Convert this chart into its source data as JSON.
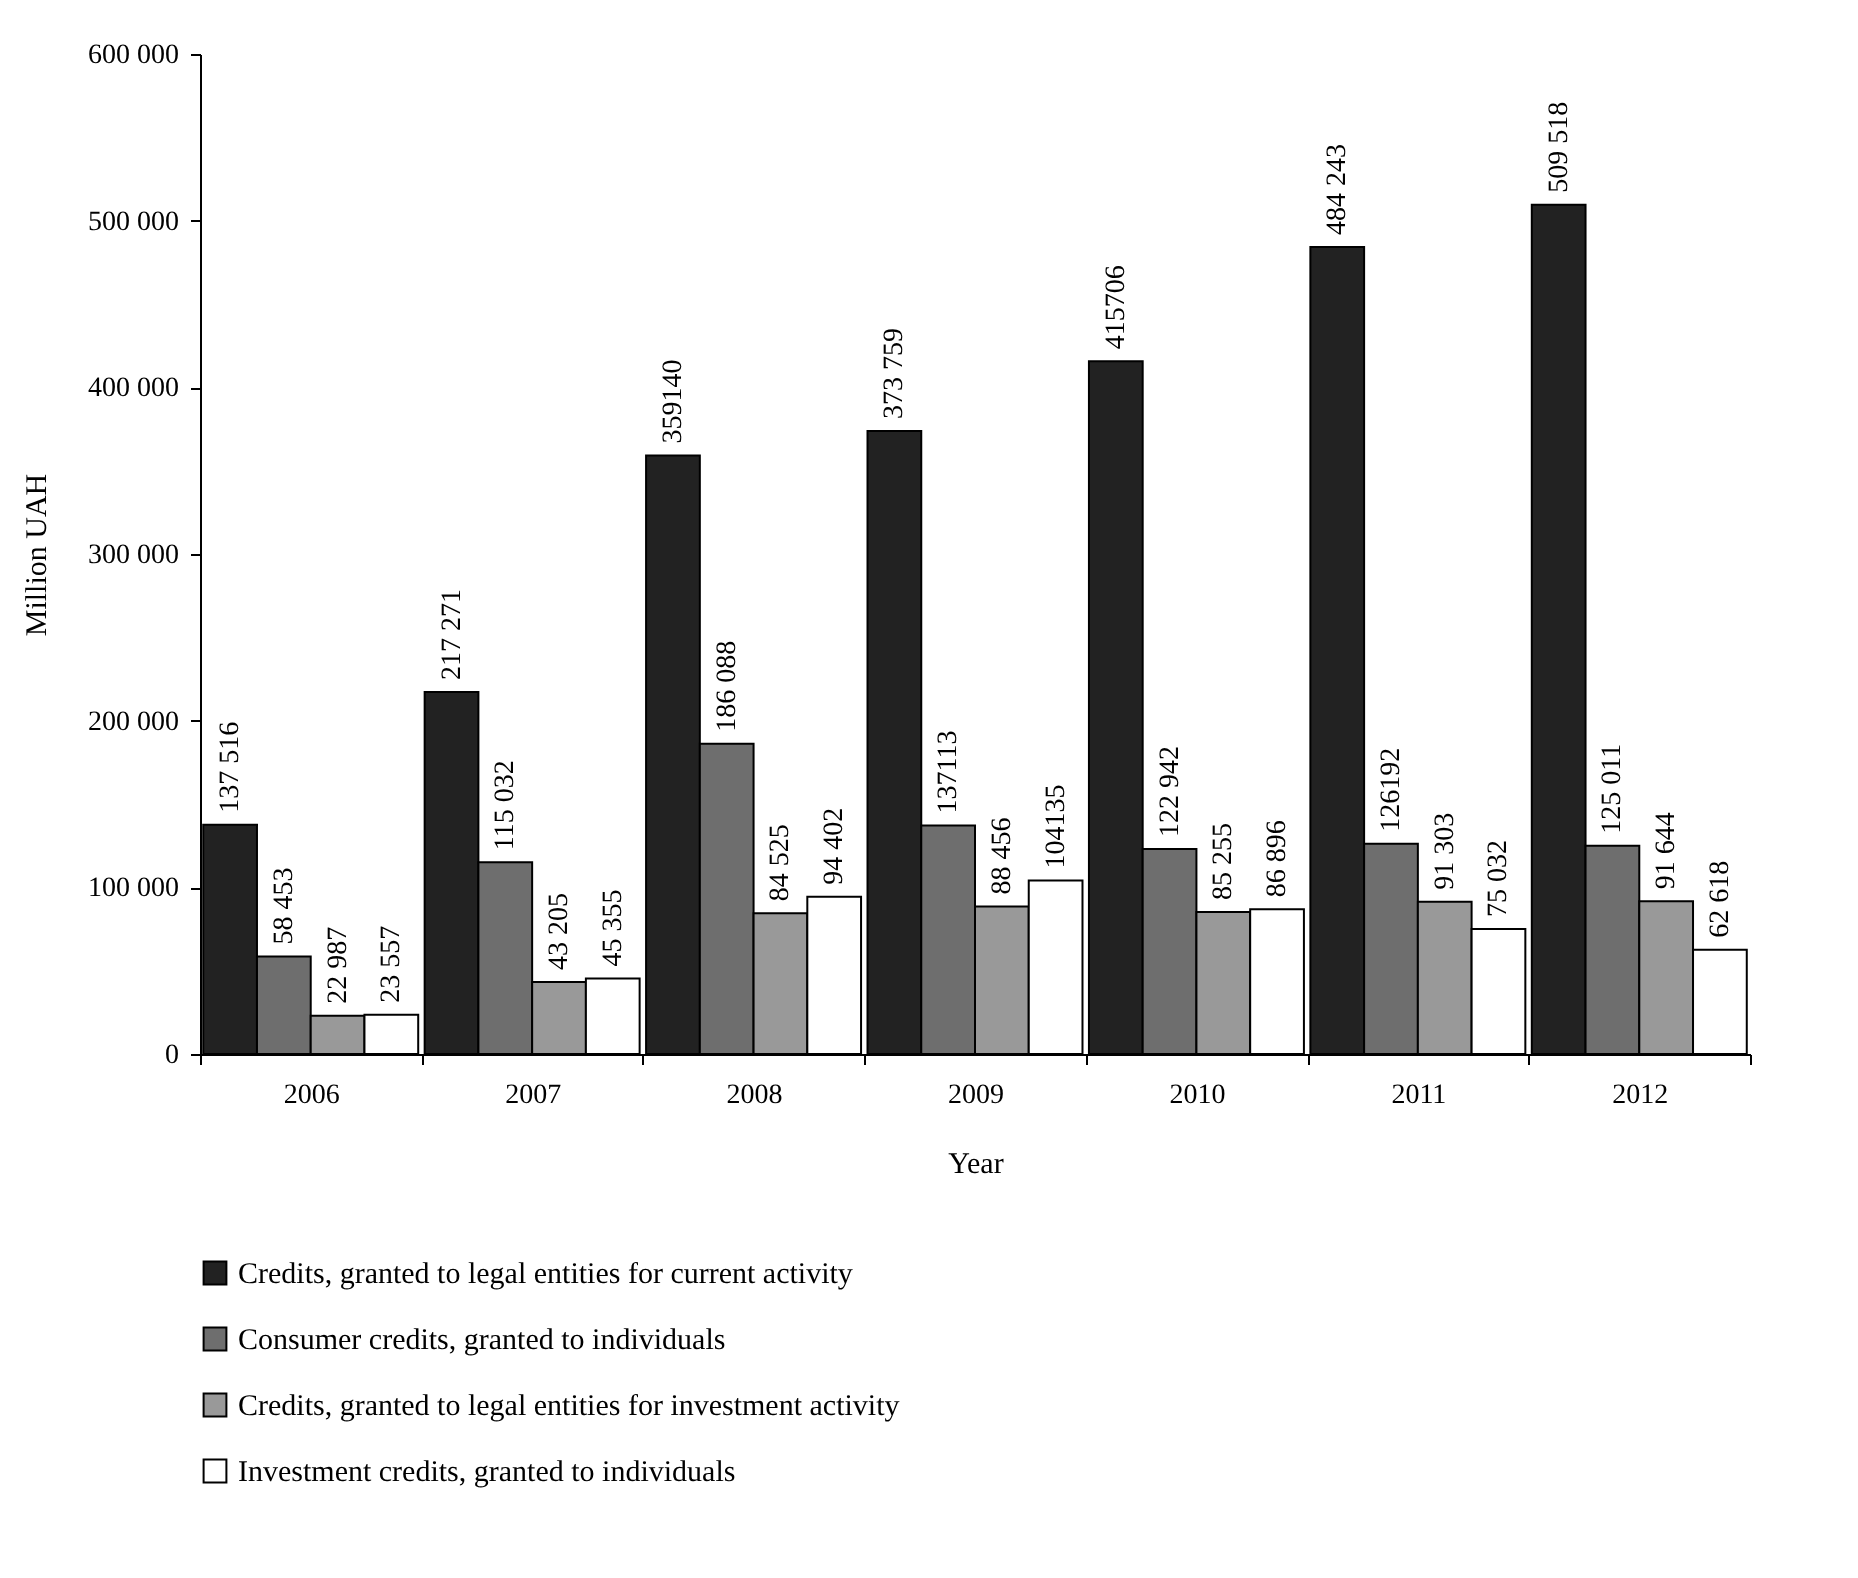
{
  "chart_data": {
    "type": "bar",
    "xlabel": "Year",
    "ylabel": "Million UAH",
    "categories": [
      "2006",
      "2007",
      "2008",
      "2009",
      "2010",
      "2011",
      "2012"
    ],
    "series": [
      {
        "name": "Credits, granted to legal entities for current activity",
        "color": "#222222",
        "values": [
          137516,
          217271,
          359140,
          373759,
          415706,
          484243,
          509518
        ],
        "value_labels": [
          "137 516",
          "217 271",
          "359140",
          "373 759",
          "415706",
          "484 243",
          "509 518"
        ]
      },
      {
        "name": "Consumer credits, granted to individuals",
        "color": "#6e6e6e",
        "values": [
          58453,
          115032,
          186088,
          137113,
          122942,
          126192,
          125011
        ],
        "value_labels": [
          "58 453",
          "115 032",
          "186 088",
          "137113",
          "122 942",
          "126192",
          "125 011"
        ]
      },
      {
        "name": "Credits, granted to legal entities for investment activity",
        "color": "#999999",
        "values": [
          22987,
          43205,
          84525,
          88456,
          85255,
          91303,
          91644
        ],
        "value_labels": [
          "22 987",
          "43 205",
          "84 525",
          "88 456",
          "85 255",
          "91 303",
          "91 644"
        ]
      },
      {
        "name": "Investment credits, granted to individuals",
        "color": "#ffffff",
        "values": [
          23557,
          45355,
          94402,
          104135,
          86896,
          75032,
          62618
        ],
        "value_labels": [
          "23 557",
          "45 355",
          "94 402",
          "104135",
          "86 896",
          "75 032",
          "62 618"
        ]
      }
    ],
    "ylim": [
      0,
      600000
    ],
    "yticks": [
      {
        "value": 0,
        "label": "0"
      },
      {
        "value": 100000,
        "label": "100 000"
      },
      {
        "value": 200000,
        "label": "200 000"
      },
      {
        "value": 300000,
        "label": "300 000"
      },
      {
        "value": 400000,
        "label": "400 000"
      },
      {
        "value": 500000,
        "label": "500 000"
      },
      {
        "value": 600000,
        "label": "600 000"
      }
    ],
    "legend": "bottom"
  }
}
